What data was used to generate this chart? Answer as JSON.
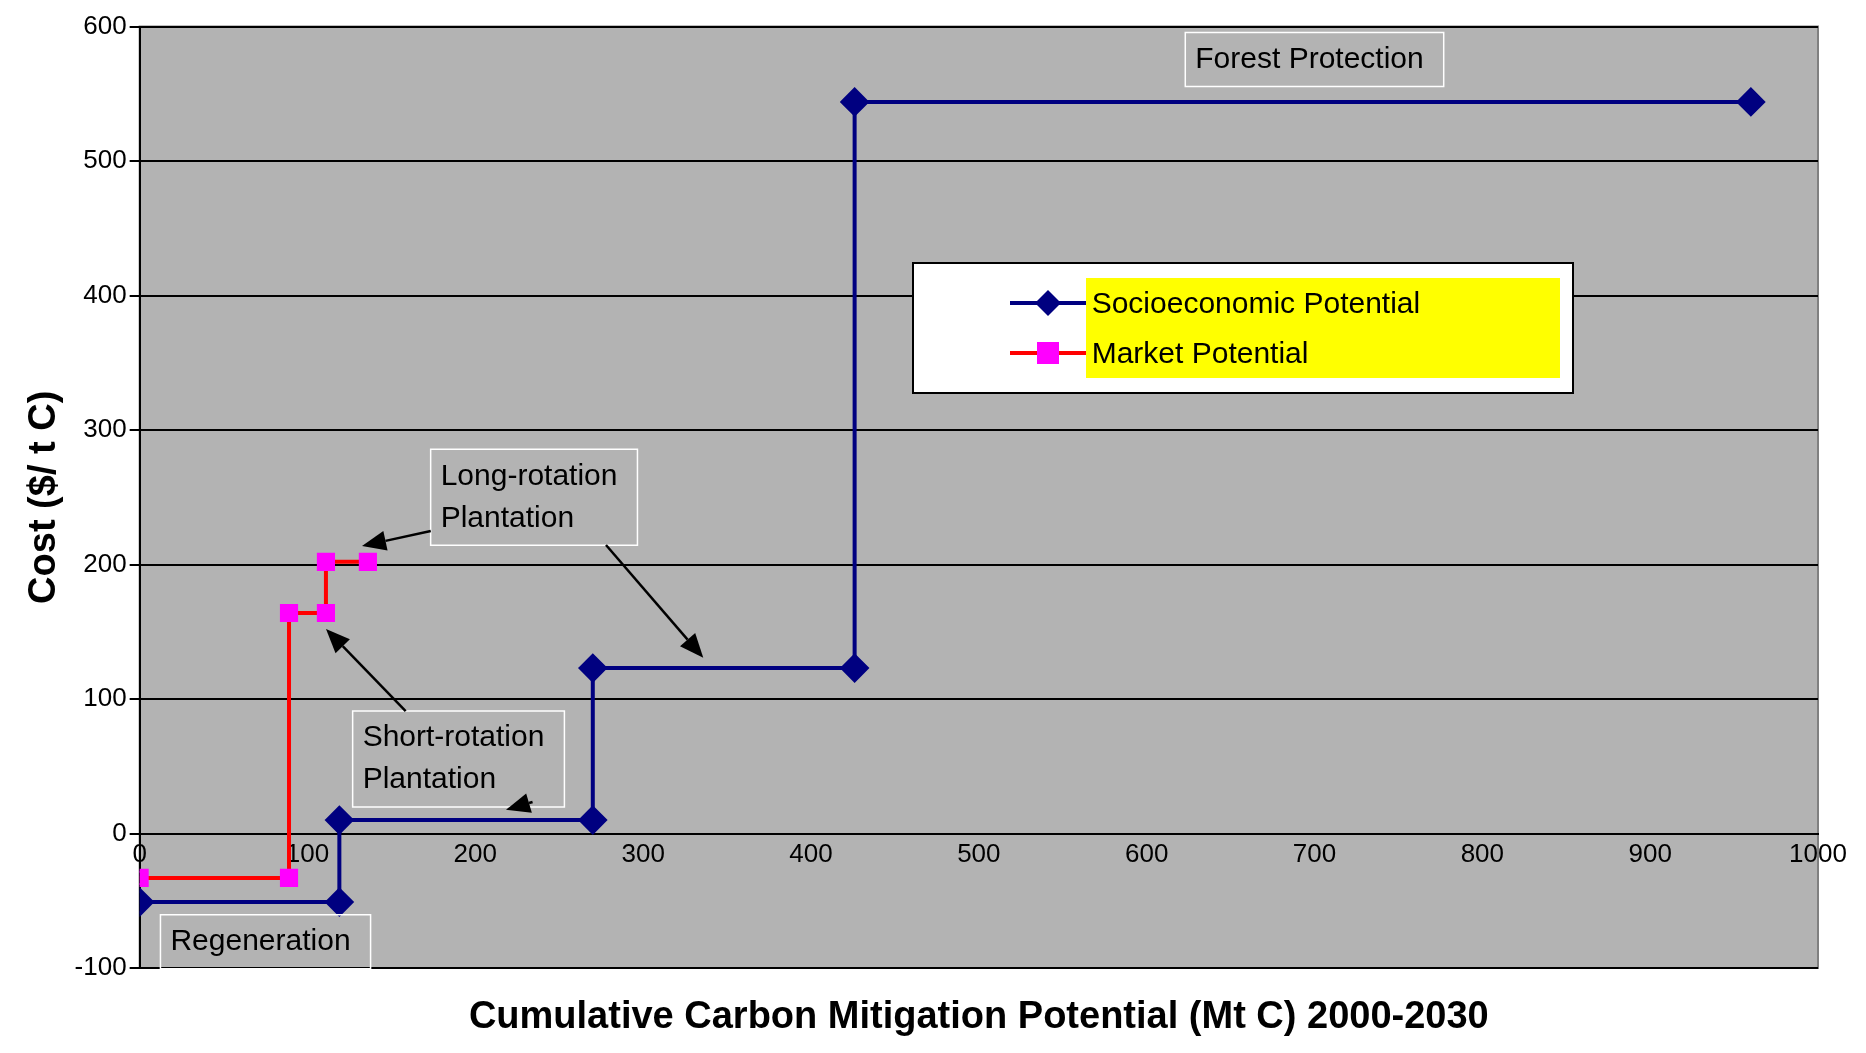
{
  "chart_data": {
    "type": "line",
    "xlabel": "Cumulative Carbon Mitigation Potential (Mt C) 2000-2030",
    "ylabel": "Cost ($/ t C)",
    "series": [
      {
        "name": "Socioeconomic Potential",
        "color": "#000080",
        "marker": "diamond",
        "x": [
          0,
          119,
          119,
          270,
          270,
          426,
          426,
          960
        ],
        "values": [
          -51,
          -51,
          10,
          10,
          123,
          123,
          544,
          544
        ]
      },
      {
        "name": "Market Potential",
        "color": "#ff0000",
        "marker": "square",
        "x": [
          0,
          89,
          89,
          111,
          111,
          136
        ],
        "values": [
          -33,
          -33,
          164,
          164,
          202,
          202
        ]
      }
    ],
    "xlim": [
      0,
      1000
    ],
    "xticks": [
      0,
      100,
      200,
      300,
      400,
      500,
      600,
      700,
      800,
      900,
      1000
    ],
    "ylim": [
      -100,
      600
    ],
    "yticks": [
      -100,
      0,
      100,
      200,
      300,
      400,
      500,
      600
    ],
    "grid": "y",
    "legend": "right",
    "annotations": [
      "Forest Protection",
      "Long-rotation Plantation",
      "Short-rotation Plantation",
      "Regeneration"
    ]
  }
}
